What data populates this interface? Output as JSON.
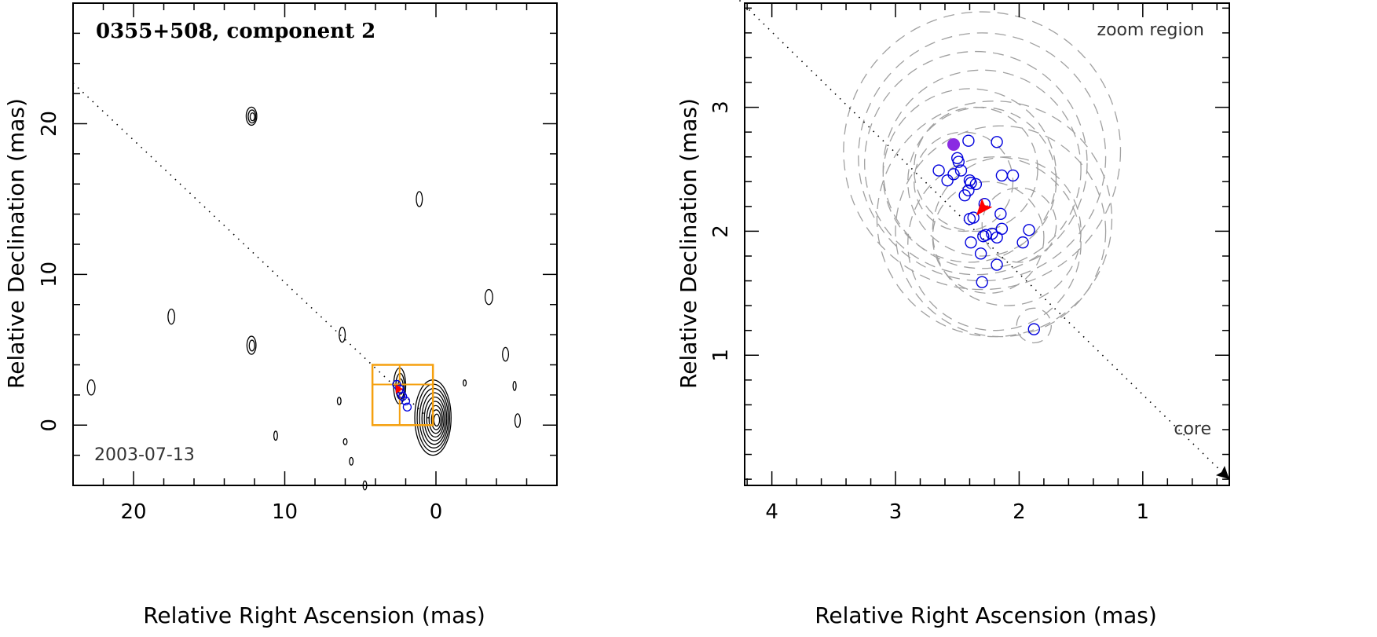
{
  "chart_data": [
    {
      "type": "scatter",
      "title": "0355+508, component 2",
      "date": "2003-07-13",
      "xlabel": "Relative Right Ascension (mas)",
      "ylabel": "Relative Declination (mas)",
      "xlim": [
        24,
        -8
      ],
      "ylim": [
        -4,
        28
      ],
      "xticks": [
        20,
        10,
        0
      ],
      "yticks": [
        0,
        10,
        20
      ],
      "colors": {
        "positions": "#0000dd",
        "zoom_box": "#f5a00f",
        "marker": "#ff0000",
        "contour": "#000000"
      },
      "component_positions": [
        {
          "x": 2.6,
          "y": 2.7
        },
        {
          "x": 2.4,
          "y": 2.4
        },
        {
          "x": 2.3,
          "y": 2.1
        },
        {
          "x": 2.2,
          "y": 1.9
        },
        {
          "x": 2.0,
          "y": 1.6
        },
        {
          "x": 1.9,
          "y": 1.2
        }
      ],
      "contours": [
        {
          "x": 0.2,
          "y": 0.5,
          "rx": 1.2,
          "ry": 2.5,
          "levels": 9
        },
        {
          "x": 2.4,
          "y": 2.6,
          "rx": 0.4,
          "ry": 1.2,
          "levels": 3
        },
        {
          "x": 12.2,
          "y": 20.5,
          "rx": 0.35,
          "ry": 0.6,
          "levels": 3
        },
        {
          "x": 12.2,
          "y": 5.3,
          "rx": 0.3,
          "ry": 0.6,
          "levels": 2
        },
        {
          "x": 17.5,
          "y": 7.2,
          "rx": 0.22,
          "ry": 0.5,
          "levels": 1
        },
        {
          "x": 1.1,
          "y": 15.0,
          "rx": 0.2,
          "ry": 0.5,
          "levels": 1
        },
        {
          "x": -3.5,
          "y": 8.5,
          "rx": 0.25,
          "ry": 0.5,
          "levels": 1
        },
        {
          "x": 6.2,
          "y": 6.0,
          "rx": 0.2,
          "ry": 0.5,
          "levels": 1
        },
        {
          "x": 22.8,
          "y": 2.5,
          "rx": 0.25,
          "ry": 0.5,
          "levels": 1
        },
        {
          "x": -4.6,
          "y": 4.7,
          "rx": 0.2,
          "ry": 0.45,
          "levels": 1
        },
        {
          "x": -5.4,
          "y": 0.3,
          "rx": 0.18,
          "ry": 0.45,
          "levels": 1
        },
        {
          "x": 6.4,
          "y": 1.6,
          "rx": 0.12,
          "ry": 0.25,
          "levels": 1
        },
        {
          "x": 10.6,
          "y": -0.7,
          "rx": 0.12,
          "ry": 0.3,
          "levels": 1
        },
        {
          "x": 6.0,
          "y": -1.1,
          "rx": 0.12,
          "ry": 0.2,
          "levels": 1
        },
        {
          "x": 5.6,
          "y": -2.4,
          "rx": 0.12,
          "ry": 0.25,
          "levels": 1
        },
        {
          "x": 4.7,
          "y": -4.0,
          "rx": 0.12,
          "ry": 0.3,
          "levels": 1
        },
        {
          "x": -1.9,
          "y": 2.8,
          "rx": 0.1,
          "ry": 0.2,
          "levels": 1
        },
        {
          "x": -5.2,
          "y": 2.6,
          "rx": 0.1,
          "ry": 0.3,
          "levels": 1
        }
      ],
      "direction_line": {
        "x1": 24,
        "y1": 22.7,
        "x2": 0,
        "y2": 0
      },
      "zoom_box": {
        "x": [
          4.2,
          0.2
        ],
        "y": [
          0.0,
          4.0
        ]
      },
      "zoom_inner": {
        "x": 2.4,
        "y": 2.7
      }
    },
    {
      "type": "scatter",
      "label": "zoom region",
      "core_label": "core",
      "xlabel": "Relative Right Ascension (mas)",
      "ylabel": "Relative Declination (mas)",
      "xlim": [
        4.22,
        0.3
      ],
      "ylim": [
        -0.05,
        3.84
      ],
      "xticks": [
        4,
        3,
        2,
        1
      ],
      "yticks": [
        1,
        2,
        3
      ],
      "colors": {
        "positions": "#0000dd",
        "reference": "#8a2be2",
        "marker": "#ff0000",
        "uncertainty": "#a0a0a0"
      },
      "reference_position": {
        "x": 2.53,
        "y": 2.7
      },
      "marker_position": {
        "x": 2.3,
        "y": 2.2
      },
      "component_positions": [
        {
          "x": 2.65,
          "y": 2.49
        },
        {
          "x": 2.58,
          "y": 2.41
        },
        {
          "x": 2.53,
          "y": 2.46
        },
        {
          "x": 2.47,
          "y": 2.49
        },
        {
          "x": 2.5,
          "y": 2.59
        },
        {
          "x": 2.49,
          "y": 2.56
        },
        {
          "x": 2.41,
          "y": 2.73
        },
        {
          "x": 2.18,
          "y": 2.72
        },
        {
          "x": 2.39,
          "y": 2.39
        },
        {
          "x": 2.4,
          "y": 2.41
        },
        {
          "x": 2.41,
          "y": 2.33
        },
        {
          "x": 2.44,
          "y": 2.29
        },
        {
          "x": 2.35,
          "y": 2.38
        },
        {
          "x": 2.14,
          "y": 2.45
        },
        {
          "x": 2.05,
          "y": 2.45
        },
        {
          "x": 2.28,
          "y": 2.22
        },
        {
          "x": 2.37,
          "y": 2.11
        },
        {
          "x": 2.4,
          "y": 2.1
        },
        {
          "x": 2.15,
          "y": 2.14
        },
        {
          "x": 2.14,
          "y": 2.02
        },
        {
          "x": 2.29,
          "y": 1.96
        },
        {
          "x": 2.27,
          "y": 1.97
        },
        {
          "x": 2.22,
          "y": 1.98
        },
        {
          "x": 2.18,
          "y": 1.95
        },
        {
          "x": 2.39,
          "y": 1.91
        },
        {
          "x": 1.97,
          "y": 1.91
        },
        {
          "x": 1.92,
          "y": 2.01
        },
        {
          "x": 2.31,
          "y": 1.82
        },
        {
          "x": 2.18,
          "y": 1.73
        },
        {
          "x": 2.3,
          "y": 1.59
        },
        {
          "x": 1.88,
          "y": 1.21
        }
      ],
      "uncertainty_circles": [
        {
          "x": 2.3,
          "y": 2.65,
          "r": 1.12
        },
        {
          "x": 2.3,
          "y": 2.6,
          "r": 1.0
        },
        {
          "x": 2.35,
          "y": 2.55,
          "r": 0.9
        },
        {
          "x": 2.3,
          "y": 2.5,
          "r": 0.8
        },
        {
          "x": 2.4,
          "y": 2.45,
          "r": 0.7
        },
        {
          "x": 2.3,
          "y": 2.4,
          "r": 0.6
        },
        {
          "x": 2.35,
          "y": 2.5,
          "r": 0.5
        },
        {
          "x": 2.45,
          "y": 2.4,
          "r": 0.4
        },
        {
          "x": 2.2,
          "y": 2.1,
          "r": 0.95
        },
        {
          "x": 2.15,
          "y": 2.0,
          "r": 0.85
        },
        {
          "x": 2.2,
          "y": 1.9,
          "r": 0.7
        },
        {
          "x": 2.1,
          "y": 2.0,
          "r": 0.6
        },
        {
          "x": 2.25,
          "y": 1.95,
          "r": 0.45
        },
        {
          "x": 2.0,
          "y": 2.05,
          "r": 0.3
        },
        {
          "x": 1.88,
          "y": 1.24,
          "r": 0.14
        }
      ],
      "direction_line": {
        "x1": 4.3,
        "y1": 3.9,
        "x2": 0.3,
        "y2": 0.0
      }
    }
  ]
}
